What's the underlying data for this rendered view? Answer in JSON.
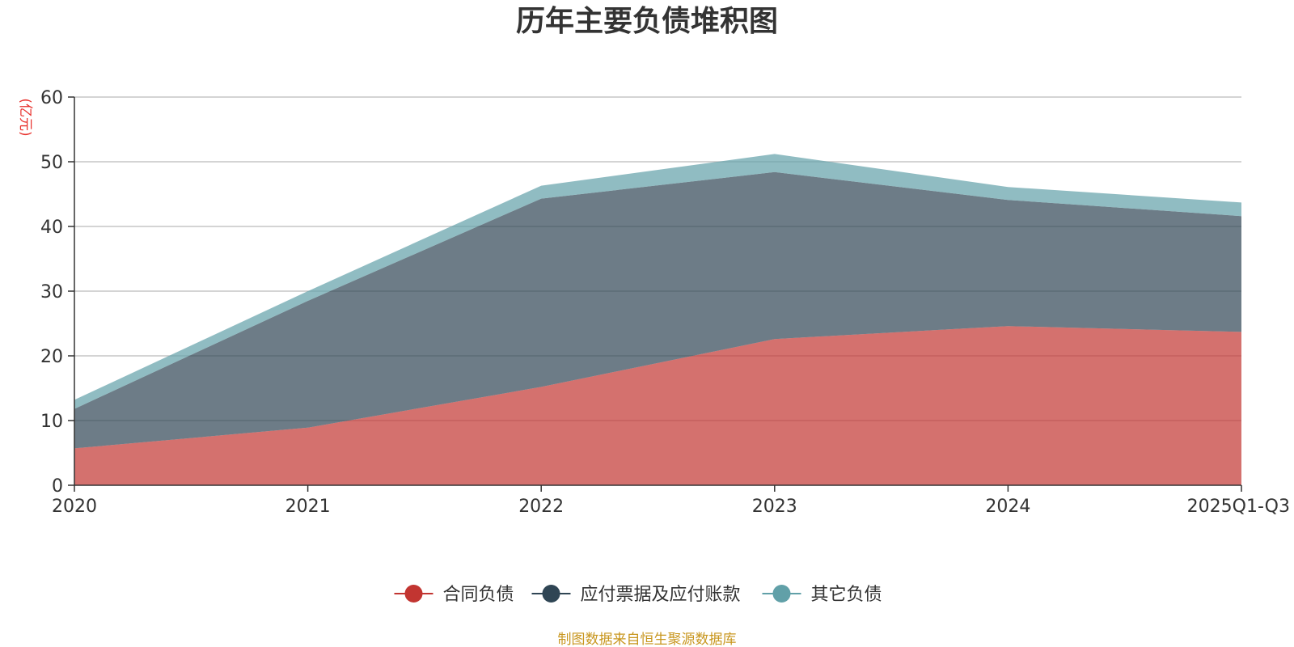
{
  "chart_data": {
    "type": "area",
    "stacked": true,
    "title": "历年主要负债堆积图",
    "ylabel": "(亿元)",
    "xlabel": "",
    "categories": [
      "2020",
      "2021",
      "2022",
      "2023",
      "2024",
      "2025Q1-Q3"
    ],
    "ylim": [
      0,
      60
    ],
    "yticks": [
      0,
      10,
      20,
      30,
      40,
      50,
      60
    ],
    "grid": true,
    "legend_position": "bottom-center",
    "series": [
      {
        "name": "合同负债",
        "values": [
          5.7,
          8.9,
          15.2,
          22.6,
          24.6,
          23.7
        ],
        "color": "#c23531"
      },
      {
        "name": "应付票据及应付账款",
        "values": [
          6.1,
          19.6,
          29.1,
          25.8,
          19.5,
          17.9
        ],
        "color": "#2f4554"
      },
      {
        "name": "其它负债",
        "values": [
          1.4,
          1.5,
          2.0,
          2.8,
          2.0,
          2.1
        ],
        "color": "#61a0a8"
      }
    ],
    "source": "制图数据来自恒生聚源数据库"
  }
}
